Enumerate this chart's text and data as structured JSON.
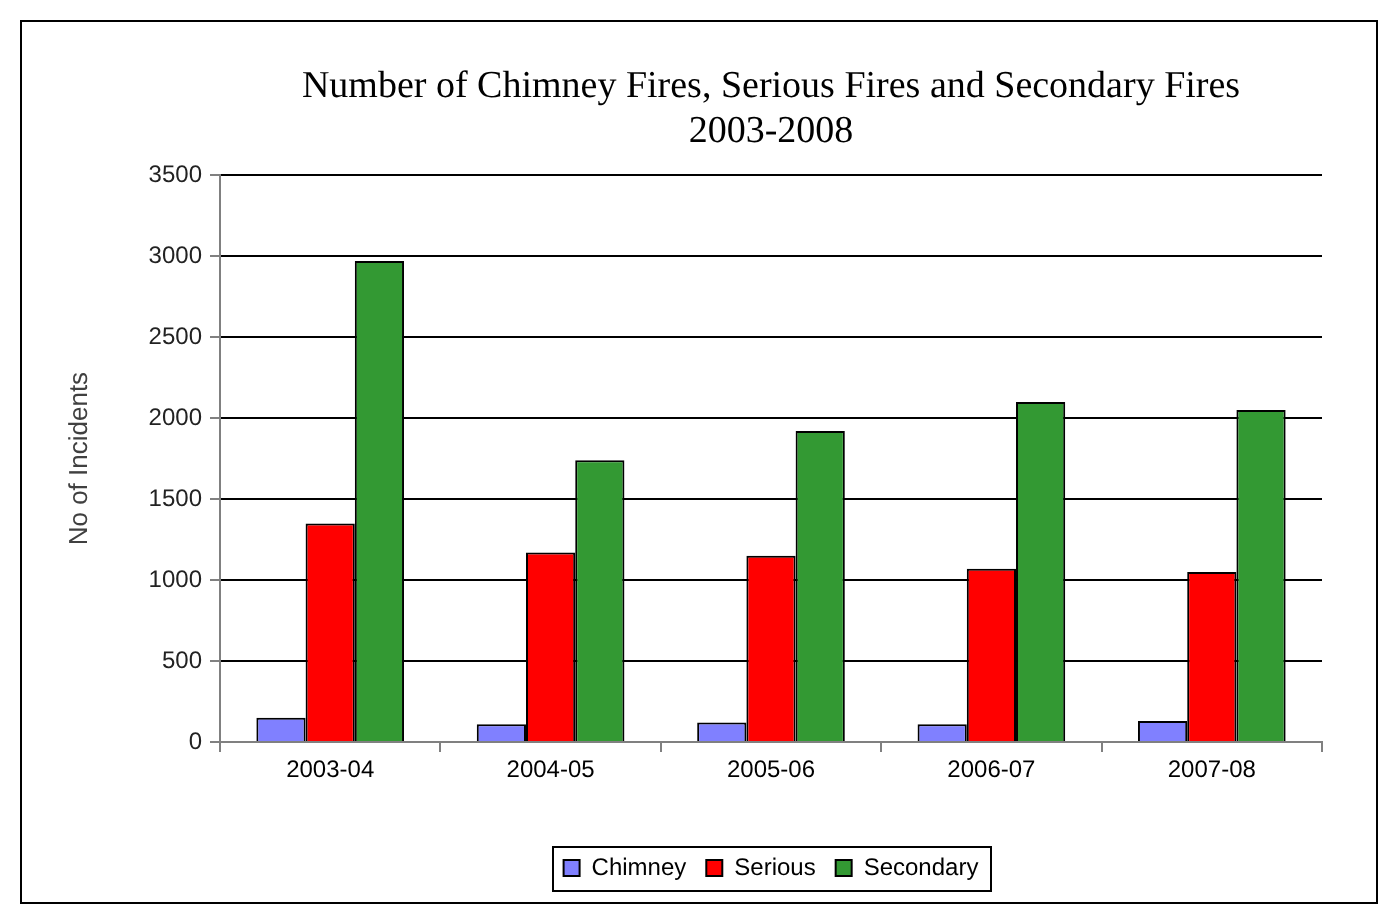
{
  "chart_data": {
    "type": "bar",
    "title": "Number of Chimney Fires, Serious Fires and Secondary Fires 2003-2008",
    "ylabel": "No of Incidents",
    "categories": [
      "2003-04",
      "2004-05",
      "2005-06",
      "2006-07",
      "2007-08"
    ],
    "series": [
      {
        "name": "Chimney",
        "color": "#8080ff",
        "values": [
          150,
          110,
          120,
          110,
          130
        ]
      },
      {
        "name": "Serious",
        "color": "#ff0000",
        "values": [
          1350,
          1170,
          1150,
          1070,
          1050
        ]
      },
      {
        "name": "Secondary",
        "color": "#339933",
        "values": [
          2970,
          1740,
          1920,
          2100,
          2050
        ]
      }
    ],
    "ylim": [
      0,
      3500
    ],
    "yticks": [
      0,
      500,
      1000,
      1500,
      2000,
      2500,
      3000,
      3500
    ],
    "grid": "y",
    "legend": "bottom"
  }
}
